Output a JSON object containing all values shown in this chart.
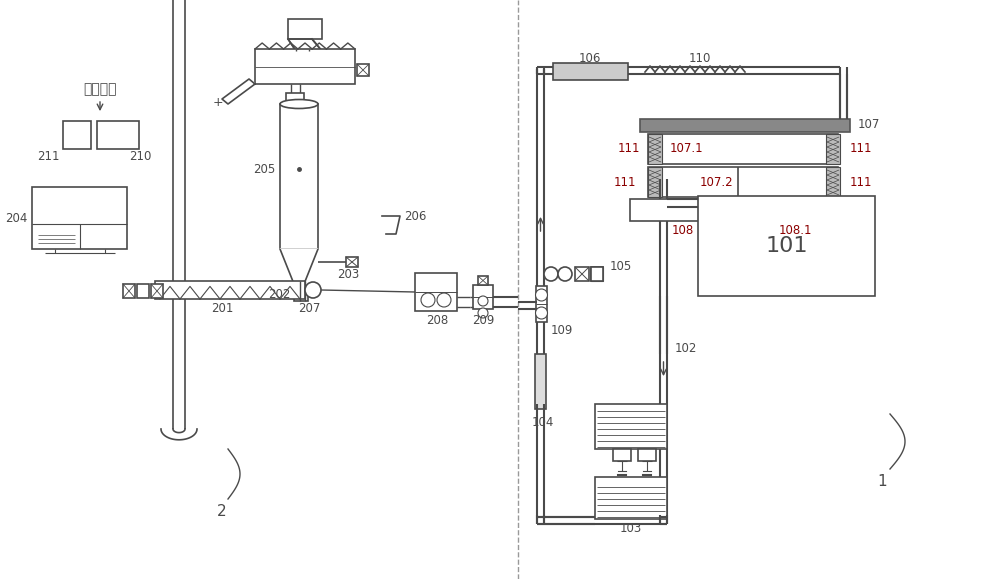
{
  "bg_color": "#ffffff",
  "lc": "#4a4a4a",
  "lw": 1.2,
  "rc": "#8B0000",
  "labels": {
    "huiyong": "回用废料",
    "210": "210",
    "211": "211",
    "204": "204",
    "205": "205",
    "202": "202",
    "203": "203",
    "201": "201",
    "206": "206",
    "207": "207",
    "208": "208",
    "209": "209",
    "2": "2",
    "101": "101",
    "102": "102",
    "103": "103",
    "104": "104",
    "105": "105",
    "106": "106",
    "107": "107",
    "107_1": "107.1",
    "107_2": "107.2",
    "108": "108",
    "108_1": "108.1",
    "109": "109",
    "110": "110",
    "111": "111",
    "1": "1"
  }
}
